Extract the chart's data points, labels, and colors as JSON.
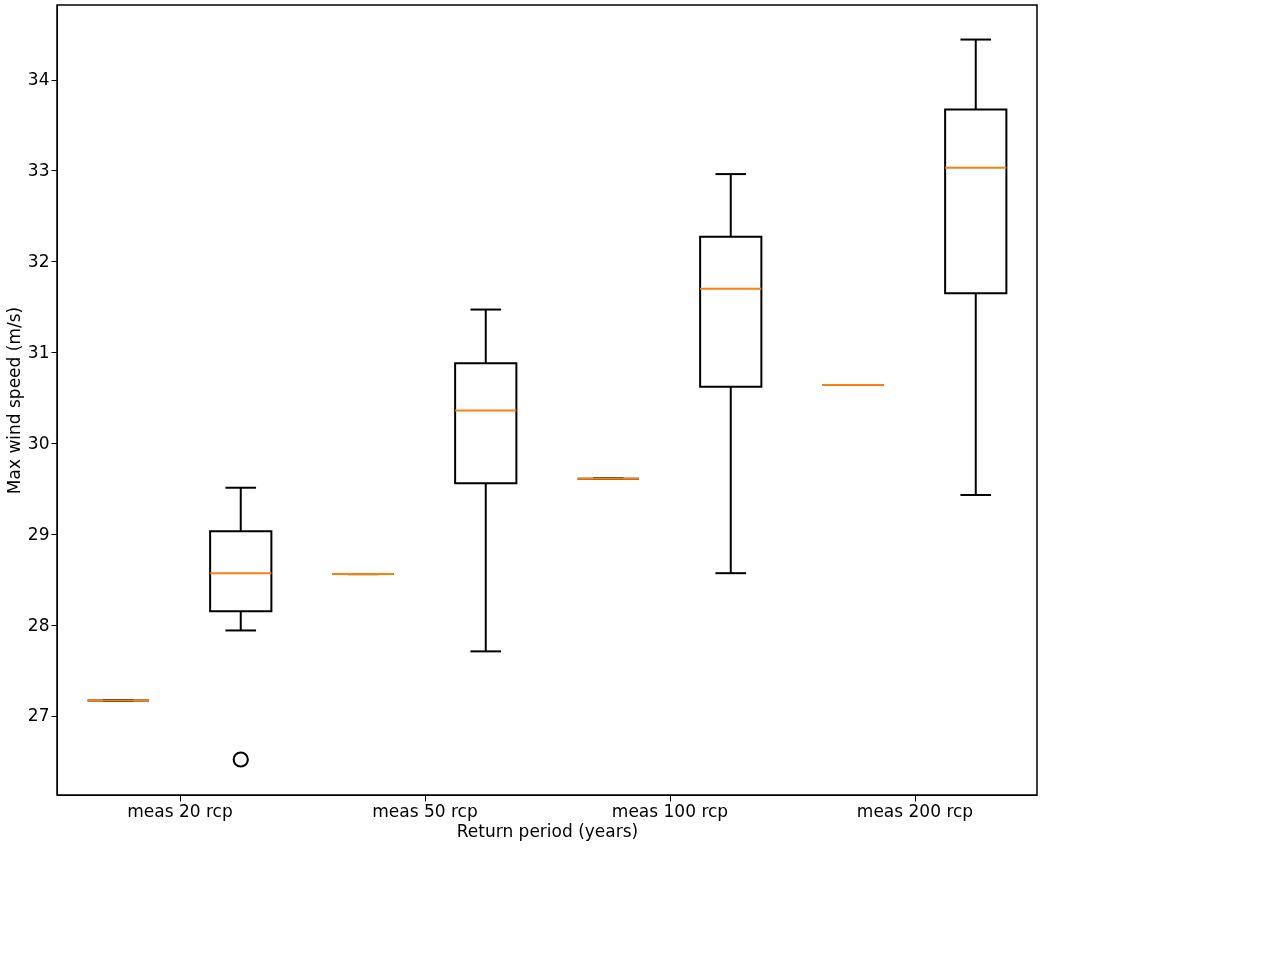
{
  "chart_data": {
    "type": "box",
    "xlabel": "Return period (years)",
    "ylabel": "Max wind speed (m/s)",
    "categories": [
      "meas 20 rcp",
      "meas 50 rcp",
      "meas 100 rcp",
      "meas 200 rcp"
    ],
    "ylim": [
      26.13,
      34.82
    ],
    "yticks": [
      27,
      28,
      29,
      30,
      31,
      32,
      33,
      34
    ],
    "grid": false,
    "series": [
      {
        "color": "#000000",
        "boxes": [
          {
            "low": 27.17,
            "q1": 27.17,
            "median": 27.17,
            "q3": 27.17,
            "high": 27.17
          },
          {
            "low": 28.56,
            "q1": 28.56,
            "median": 28.56,
            "q3": 28.56,
            "high": 28.56
          },
          {
            "low": 29.61,
            "q1": 29.61,
            "median": 29.61,
            "q3": 29.61,
            "high": 29.61
          },
          {
            "low": 30.64,
            "q1": 30.64,
            "median": 30.64,
            "q3": 30.64,
            "high": 30.64
          }
        ]
      },
      {
        "color": "#000000",
        "boxes": [
          {
            "low": 27.94,
            "q1": 28.15,
            "median": 28.57,
            "q3": 29.03,
            "high": 29.51,
            "outliers": [
              26.52
            ]
          },
          {
            "low": 27.71,
            "q1": 29.56,
            "median": 30.36,
            "q3": 30.88,
            "high": 31.47
          },
          {
            "low": 28.57,
            "q1": 30.62,
            "median": 31.7,
            "q3": 32.27,
            "high": 32.96
          },
          {
            "low": 29.43,
            "q1": 31.65,
            "median": 33.03,
            "q3": 33.67,
            "high": 34.44
          }
        ]
      }
    ]
  }
}
